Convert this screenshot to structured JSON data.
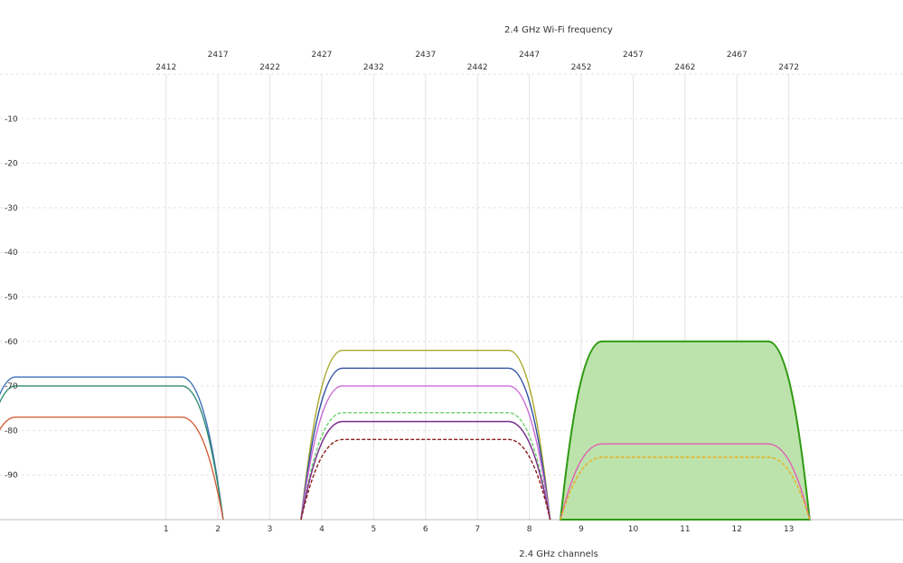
{
  "chart_data": {
    "type": "area",
    "title": "2.4 GHz Wi-Fi frequency",
    "xlabel": "2.4 GHz channels",
    "ylabel": "",
    "channel_ticks": [
      "1",
      "2",
      "3",
      "4",
      "5",
      "6",
      "7",
      "8",
      "9",
      "10",
      "11",
      "12",
      "13"
    ],
    "frequency_ticks": [
      "2412",
      "2417",
      "2422",
      "2427",
      "2432",
      "2437",
      "2442",
      "2447",
      "2452",
      "2457",
      "2462",
      "2467",
      "2472"
    ],
    "y_ticks": [
      "-10",
      "-20",
      "-30",
      "-40",
      "-50",
      "-60",
      "-70",
      "-80",
      "-90"
    ],
    "xlim": [
      -2.2,
      15.2
    ],
    "ylim": [
      -100,
      0
    ],
    "grid": true,
    "legend": "none",
    "series": [
      {
        "channel": -0.3,
        "signal": -68,
        "color": "#3b6fb6",
        "filled": false,
        "dashed": false,
        "bold": false
      },
      {
        "channel": -0.3,
        "signal": -70,
        "color": "#2e8b6e",
        "filled": false,
        "dashed": false,
        "bold": false
      },
      {
        "channel": -0.3,
        "signal": -77,
        "color": "#d2603a",
        "filled": false,
        "dashed": false,
        "bold": false
      },
      {
        "channel": 6.0,
        "signal": -62,
        "color": "#a8a82a",
        "filled": false,
        "dashed": false,
        "bold": false
      },
      {
        "channel": 6.0,
        "signal": -66,
        "color": "#2f4fa0",
        "filled": false,
        "dashed": false,
        "bold": false
      },
      {
        "channel": 6.0,
        "signal": -70,
        "color": "#cc6ad6",
        "filled": false,
        "dashed": false,
        "bold": false
      },
      {
        "channel": 6.0,
        "signal": -76,
        "color": "#6cd06c",
        "filled": false,
        "dashed": true,
        "bold": false
      },
      {
        "channel": 6.0,
        "signal": -78,
        "color": "#7a2a8a",
        "filled": false,
        "dashed": false,
        "bold": false
      },
      {
        "channel": 6.0,
        "signal": -82,
        "color": "#8b1f1f",
        "filled": false,
        "dashed": true,
        "bold": false
      },
      {
        "channel": 11.0,
        "signal": -83,
        "color": "#e060b0",
        "filled": false,
        "dashed": false,
        "bold": false
      },
      {
        "channel": 11.0,
        "signal": -86,
        "color": "#e8b020",
        "filled": false,
        "dashed": true,
        "bold": false
      },
      {
        "channel": 11.0,
        "signal": -60,
        "color": "#2e9a10",
        "filled": true,
        "dashed": false,
        "bold": true,
        "fill_color": "#bde3ad"
      }
    ]
  }
}
